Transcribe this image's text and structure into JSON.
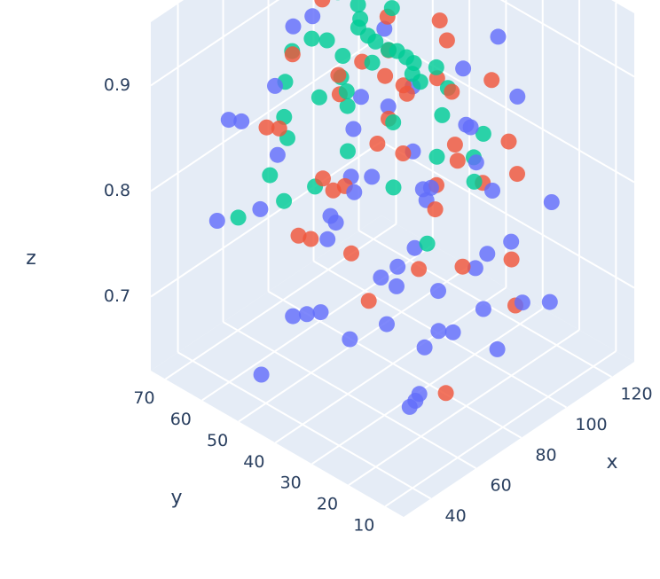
{
  "chart_data": {
    "type": "scatter",
    "dimensions": 3,
    "xlabel": "x",
    "ylabel": "y",
    "zlabel": "z",
    "x_ticks": [
      "40",
      "60",
      "80",
      "100",
      "120"
    ],
    "y_ticks": [
      "10",
      "20",
      "30",
      "40",
      "50",
      "60",
      "70"
    ],
    "z_ticks": [
      "0.7",
      "0.8",
      "0.9"
    ],
    "xlim": [
      28,
      130
    ],
    "ylim": [
      5,
      74
    ],
    "zlim": [
      0.63,
      0.96
    ],
    "grid": true,
    "legend": "none",
    "colors": {
      "background": "#E5ECF6",
      "grid": "#ffffff",
      "text": "#2a3f5f",
      "series": [
        "#636EFA",
        "#EF553B",
        "#00CC96"
      ]
    },
    "series": [
      {
        "color": "#636EFA",
        "points": [
          [
            42,
            12,
            0.7
          ],
          [
            56,
            18,
            0.68
          ],
          [
            71,
            22,
            0.71
          ],
          [
            84,
            14,
            0.69
          ],
          [
            97,
            28,
            0.72
          ],
          [
            112,
            34,
            0.7
          ],
          [
            39,
            42,
            0.73
          ],
          [
            61,
            48,
            0.69
          ],
          [
            77,
            56,
            0.72
          ],
          [
            92,
            63,
            0.7
          ],
          [
            118,
            58,
            0.74
          ],
          [
            46,
            67,
            0.76
          ],
          [
            67,
            31,
            0.74
          ],
          [
            88,
            39,
            0.73
          ],
          [
            103,
            46,
            0.75
          ],
          [
            121,
            22,
            0.76
          ],
          [
            52,
            26,
            0.78
          ],
          [
            73,
            11,
            0.75
          ],
          [
            95,
            17,
            0.77
          ],
          [
            108,
            66,
            0.79
          ],
          [
            44,
            54,
            0.8
          ],
          [
            63,
            61,
            0.81
          ],
          [
            82,
            47,
            0.79
          ],
          [
            99,
            53,
            0.82
          ],
          [
            116,
            41,
            0.8
          ],
          [
            58,
            37,
            0.83
          ],
          [
            79,
            29,
            0.82
          ],
          [
            101,
            33,
            0.84
          ],
          [
            124,
            48,
            0.83
          ],
          [
            48,
            19,
            0.81
          ],
          [
            69,
            44,
            0.86
          ],
          [
            86,
            21,
            0.85
          ],
          [
            107,
            59,
            0.87
          ],
          [
            41,
            33,
            0.84
          ],
          [
            93,
            70,
            0.88
          ],
          [
            57,
            58,
            0.89
          ],
          [
            78,
            66,
            0.9
          ],
          [
            114,
            27,
            0.86
          ],
          [
            66,
            15,
            0.73
          ],
          [
            104,
            12,
            0.71
          ],
          [
            35,
            24,
            0.75
          ],
          [
            126,
            63,
            0.78
          ],
          [
            50,
            45,
            0.71
          ],
          [
            89,
            57,
            0.76
          ],
          [
            74,
            38,
            0.68
          ],
          [
            111,
            50,
            0.72
          ],
          [
            60,
            69,
            0.83
          ],
          [
            98,
            24,
            0.8
          ],
          [
            43,
            62,
            0.87
          ],
          [
            120,
            36,
            0.89
          ],
          [
            38,
            50,
            0.66
          ],
          [
            81,
            32,
            0.66
          ],
          [
            100,
            40,
            0.67
          ],
          [
            64,
            24,
            0.65
          ],
          [
            87,
            9,
            0.74
          ]
        ]
      },
      {
        "color": "#EF553B",
        "points": [
          [
            47,
            31,
            0.8
          ],
          [
            62,
            42,
            0.82
          ],
          [
            78,
            36,
            0.84
          ],
          [
            91,
            48,
            0.83
          ],
          [
            106,
            40,
            0.85
          ],
          [
            119,
            52,
            0.82
          ],
          [
            54,
            55,
            0.86
          ],
          [
            71,
            49,
            0.88
          ],
          [
            85,
            58,
            0.86
          ],
          [
            102,
            62,
            0.84
          ],
          [
            115,
            30,
            0.81
          ],
          [
            59,
            20,
            0.79
          ],
          [
            76,
            26,
            0.81
          ],
          [
            94,
            31,
            0.82
          ],
          [
            109,
            24,
            0.8
          ],
          [
            68,
            60,
            0.9
          ],
          [
            83,
            44,
            0.89
          ],
          [
            97,
            52,
            0.91
          ],
          [
            112,
            45,
            0.88
          ],
          [
            49,
            40,
            0.85
          ],
          [
            65,
            35,
            0.87
          ],
          [
            88,
            28,
            0.85
          ],
          [
            104,
            56,
            0.86
          ],
          [
            122,
            39,
            0.84
          ],
          [
            73,
            52,
            0.78
          ],
          [
            55,
            47,
            0.77
          ],
          [
            96,
            38,
            0.78
          ],
          [
            117,
            60,
            0.8
          ],
          [
            80,
            21,
            0.76
          ],
          [
            63,
            64,
            0.83
          ],
          [
            100,
            20,
            0.74
          ],
          [
            45,
            25,
            0.77
          ],
          [
            86,
            63,
            0.92
          ],
          [
            110,
            34,
            0.77
          ],
          [
            70,
            30,
            0.92
          ],
          [
            35,
            38,
            0.82
          ],
          [
            125,
            55,
            0.86
          ],
          [
            58,
            12,
            0.69
          ],
          [
            92,
            14,
            0.72
          ]
        ]
      },
      {
        "color": "#00CC96",
        "points": [
          [
            66,
            44,
            0.9
          ],
          [
            74,
            50,
            0.91
          ],
          [
            82,
            46,
            0.92
          ],
          [
            90,
            53,
            0.9
          ],
          [
            78,
            40,
            0.93
          ],
          [
            70,
            56,
            0.92
          ],
          [
            86,
            38,
            0.91
          ],
          [
            94,
            45,
            0.89
          ],
          [
            62,
            49,
            0.89
          ],
          [
            80,
            58,
            0.9
          ],
          [
            98,
            50,
            0.88
          ],
          [
            72,
            35,
            0.88
          ],
          [
            88,
            60,
            0.93
          ],
          [
            76,
            47,
            0.94
          ],
          [
            84,
            52,
            0.94
          ],
          [
            60,
            40,
            0.86
          ],
          [
            104,
            43,
            0.87
          ],
          [
            68,
            62,
            0.87
          ],
          [
            92,
            34,
            0.86
          ],
          [
            100,
            58,
            0.85
          ],
          [
            56,
            54,
            0.85
          ],
          [
            108,
            52,
            0.84
          ],
          [
            64,
            30,
            0.84
          ],
          [
            114,
            46,
            0.83
          ],
          [
            52,
            44,
            0.83
          ],
          [
            96,
            64,
            0.83
          ],
          [
            80,
            28,
            0.85
          ],
          [
            74,
            66,
            0.82
          ],
          [
            118,
            56,
            0.81
          ],
          [
            48,
            50,
            0.81
          ],
          [
            86,
            44,
            0.95
          ],
          [
            72,
            44,
            0.96
          ],
          [
            106,
            34,
            0.8
          ],
          [
            58,
            60,
            0.8
          ],
          [
            90,
            24,
            0.82
          ],
          [
            120,
            40,
            0.79
          ],
          [
            44,
            60,
            0.78
          ],
          [
            84,
            70,
            0.86
          ],
          [
            66,
            22,
            0.8
          ],
          [
            102,
            66,
            0.79
          ]
        ]
      }
    ]
  }
}
